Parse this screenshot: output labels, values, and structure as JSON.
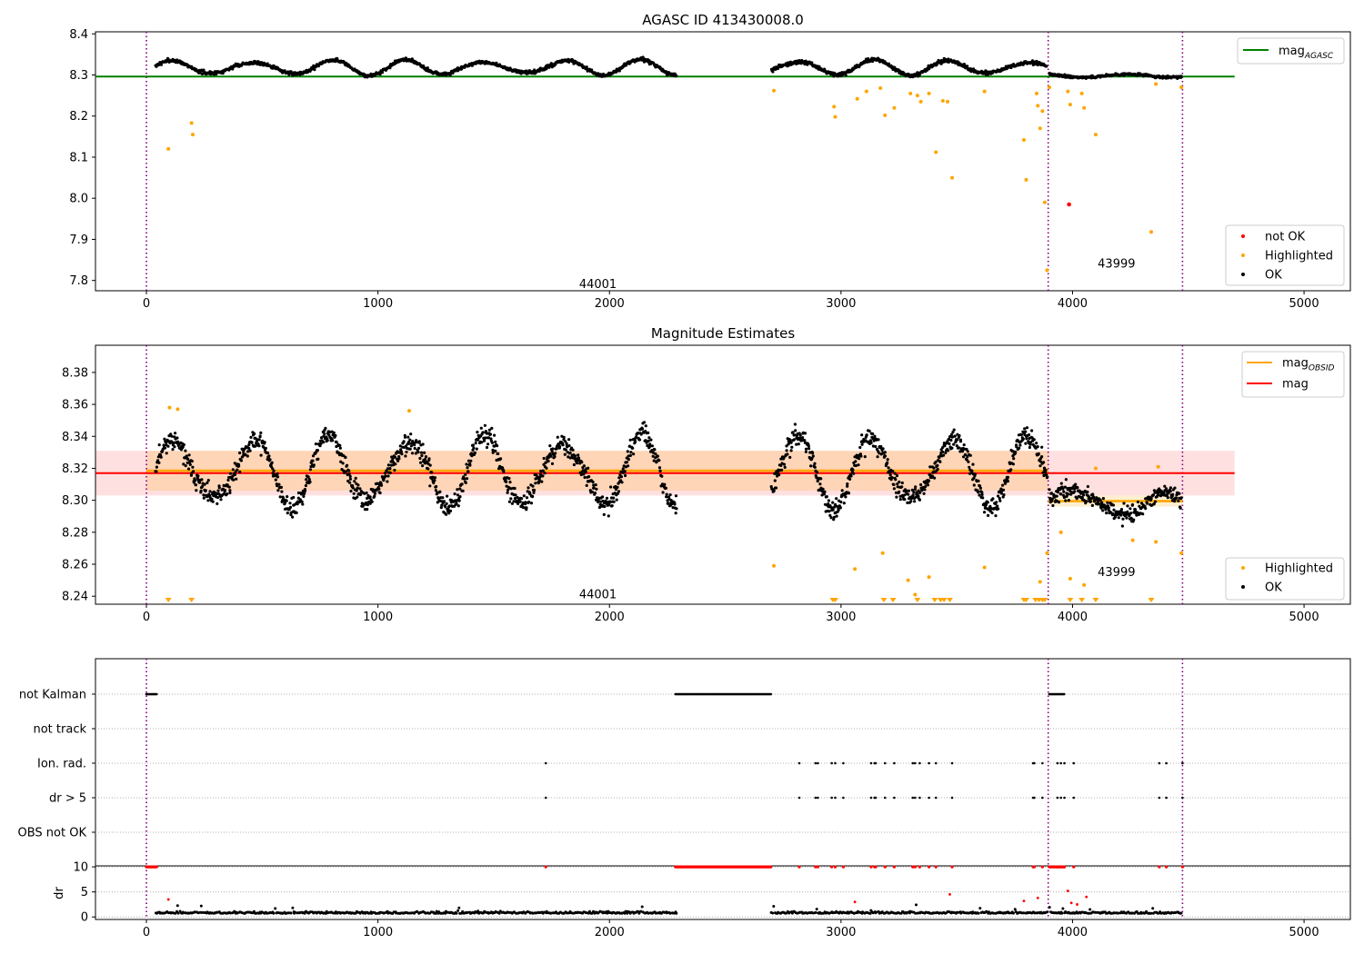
{
  "figure": {
    "title_top": "AGASC ID 413430008.0",
    "title_mid": "Magnitude Estimates"
  },
  "chart_data": [
    {
      "type": "scatter",
      "title": "AGASC ID 413430008.0",
      "xlabel": "",
      "ylabel": "",
      "xlim": [
        -220,
        5200
      ],
      "ylim": [
        7.775,
        8.405
      ],
      "xticks": [
        0,
        1000,
        2000,
        3000,
        4000,
        5000
      ],
      "yticks": [
        7.8,
        7.9,
        8.0,
        8.1,
        8.2,
        8.3,
        8.4
      ],
      "grid": false,
      "obsid_boundaries": [
        0,
        3895,
        4475
      ],
      "obsid_labels": [
        {
          "text": "44001",
          "x": 1950,
          "y": 7.79
        },
        {
          "text": "43999",
          "x": 4190,
          "y": 7.84
        }
      ],
      "reference_line": {
        "name": "mag_AGASC",
        "y": 8.296,
        "x0": -220,
        "x1": 4700,
        "color": "#008000"
      },
      "legend_lines": [
        {
          "label": "mag",
          "sub": "AGASC",
          "color": "#008000"
        }
      ],
      "legend_points": [
        {
          "label": "not OK",
          "color": "#ff0000"
        },
        {
          "label": "Highlighted",
          "color": "#ffa500"
        },
        {
          "label": "OK",
          "color": "#000000"
        }
      ],
      "legend_position": "upper-right / lower-right",
      "ok_segments": [
        {
          "x0": 40,
          "x1": 2290,
          "obs": 1
        },
        {
          "x0": 2700,
          "x1": 3890,
          "obs": 1
        },
        {
          "x0": 3900,
          "x1": 4470,
          "obs": 2
        }
      ],
      "highlighted_points": [
        [
          95,
          8.12
        ],
        [
          195,
          8.183
        ],
        [
          200,
          8.155
        ],
        [
          2710,
          8.262
        ],
        [
          2970,
          8.223
        ],
        [
          2975,
          8.198
        ],
        [
          3070,
          8.242
        ],
        [
          3110,
          8.26
        ],
        [
          3170,
          8.268
        ],
        [
          3190,
          8.202
        ],
        [
          3230,
          8.22
        ],
        [
          3300,
          8.255
        ],
        [
          3330,
          8.25
        ],
        [
          3345,
          8.235
        ],
        [
          3380,
          8.255
        ],
        [
          3410,
          8.112
        ],
        [
          3440,
          8.237
        ],
        [
          3460,
          8.235
        ],
        [
          3480,
          8.05
        ],
        [
          3620,
          8.26
        ],
        [
          3790,
          8.142
        ],
        [
          3800,
          8.045
        ],
        [
          3845,
          8.255
        ],
        [
          3850,
          8.225
        ],
        [
          3860,
          8.17
        ],
        [
          3870,
          8.212
        ],
        [
          3880,
          7.99
        ],
        [
          3890,
          7.825
        ],
        [
          3900,
          8.27
        ],
        [
          3980,
          8.26
        ],
        [
          3990,
          8.228
        ],
        [
          4040,
          8.255
        ],
        [
          4050,
          8.22
        ],
        [
          4100,
          8.155
        ],
        [
          4340,
          7.918
        ],
        [
          4360,
          8.278
        ],
        [
          4470,
          8.27
        ]
      ],
      "not_ok_points": [
        [
          3985,
          7.985
        ]
      ]
    },
    {
      "type": "scatter",
      "title": "Magnitude Estimates",
      "xlabel": "",
      "ylabel": "",
      "xlim": [
        -220,
        5200
      ],
      "ylim": [
        8.235,
        8.397
      ],
      "xticks": [
        0,
        1000,
        2000,
        3000,
        4000,
        5000
      ],
      "yticks": [
        8.24,
        8.26,
        8.28,
        8.3,
        8.32,
        8.34,
        8.36,
        8.38
      ],
      "grid": false,
      "obsid_boundaries": [
        0,
        3895,
        4475
      ],
      "obsid_labels": [
        {
          "text": "44001",
          "x": 1950,
          "y": 8.241
        },
        {
          "text": "43999",
          "x": 4190,
          "y": 8.255
        }
      ],
      "mag": {
        "name": "mag",
        "y": 8.317,
        "band": [
          8.303,
          8.331
        ],
        "x0": -220,
        "x1": 4700,
        "color": "#ff0000"
      },
      "mag_obsid": [
        {
          "x0": 0,
          "x1": 3895,
          "y": 8.3185,
          "band": [
            8.306,
            8.331
          ],
          "color": "#ffa500"
        },
        {
          "x0": 3895,
          "x1": 4475,
          "y": 8.2995,
          "band": [
            8.296,
            8.303
          ],
          "color": "#ffa500"
        }
      ],
      "legend_lines": [
        {
          "label": "mag",
          "sub": "OBSID",
          "color": "#ffa500"
        },
        {
          "label": "mag",
          "sub": "",
          "color": "#ff0000"
        }
      ],
      "legend_points": [
        {
          "label": "Highlighted",
          "color": "#ffa500"
        },
        {
          "label": "OK",
          "color": "#000000"
        }
      ],
      "legend_position": "upper-right / lower-right",
      "ok_segments": [
        {
          "x0": 40,
          "x1": 2290,
          "obs": 1
        },
        {
          "x0": 2700,
          "x1": 3890,
          "obs": 1
        },
        {
          "x0": 3900,
          "x1": 4470,
          "obs": 2
        }
      ],
      "highlighted_points": [
        [
          100,
          8.358
        ],
        [
          135,
          8.357
        ],
        [
          1135,
          8.356
        ],
        [
          2710,
          8.259
        ],
        [
          3060,
          8.257
        ],
        [
          3180,
          8.267
        ],
        [
          3290,
          8.25
        ],
        [
          3320,
          8.241
        ],
        [
          3380,
          8.252
        ],
        [
          3620,
          8.258
        ],
        [
          3860,
          8.249
        ],
        [
          3890,
          8.267
        ],
        [
          3950,
          8.28
        ],
        [
          3990,
          8.251
        ],
        [
          4050,
          8.247
        ],
        [
          4100,
          8.32
        ],
        [
          4260,
          8.275
        ],
        [
          4360,
          8.274
        ],
        [
          4370,
          8.321
        ],
        [
          4470,
          8.267
        ]
      ],
      "clipped_highlighted_x": [
        95,
        195,
        2965,
        2975,
        3185,
        3225,
        3330,
        3405,
        3430,
        3445,
        3470,
        3790,
        3800,
        3840,
        3855,
        3870,
        3880,
        3990,
        4040,
        4100,
        4340
      ]
    },
    {
      "type": "scatter",
      "title": "",
      "xlabel": "",
      "ylabel": "",
      "xlim": [
        -220,
        5200
      ],
      "xticks": [
        0,
        1000,
        2000,
        3000,
        4000,
        5000
      ],
      "categories": [
        "not Kalman",
        "not track",
        "Ion. rad.",
        "dr > 5",
        "OBS not OK"
      ],
      "grid": true,
      "obsid_boundaries": [
        0,
        3895,
        4475
      ],
      "flags": [
        {
          "category": "not Kalman",
          "ranges": [
            [
              0,
              45
            ],
            [
              2285,
              2700
            ],
            [
              3900,
              3965
            ]
          ],
          "points": []
        },
        {
          "category": "not track",
          "ranges": [],
          "points": []
        },
        {
          "category": "Ion. rad.",
          "ranges": [],
          "points": [
            1725,
            2820,
            2890,
            2900,
            2960,
            2975,
            3010,
            3130,
            3145,
            3150,
            3190,
            3230,
            3310,
            3320,
            3340,
            3380,
            3410,
            3480,
            3830,
            3835,
            3870,
            3935,
            3950,
            3965,
            4005,
            4375,
            4405,
            4475
          ]
        },
        {
          "category": "dr > 5",
          "ranges": [],
          "points": [
            1725,
            2820,
            2890,
            2900,
            2960,
            2975,
            3010,
            3130,
            3145,
            3150,
            3190,
            3230,
            3310,
            3320,
            3340,
            3380,
            3410,
            3480,
            3830,
            3835,
            3870,
            3935,
            3950,
            3965,
            4005,
            4375,
            4405,
            4475
          ]
        },
        {
          "category": "OBS not OK",
          "ranges": [],
          "points": []
        }
      ]
    },
    {
      "type": "scatter",
      "title": "",
      "xlabel": "",
      "ylabel": "dr",
      "xlim": [
        -220,
        5200
      ],
      "ylim": [
        -0.5,
        10.2
      ],
      "xticks": [
        0,
        1000,
        2000,
        3000,
        4000,
        5000
      ],
      "yticks": [
        0,
        5,
        10
      ],
      "grid": true,
      "ok_segments": [
        {
          "x0": 40,
          "x1": 2290
        },
        {
          "x0": 2700,
          "x1": 3890
        },
        {
          "x0": 3900,
          "x1": 4470
        }
      ],
      "not_ok_ranges": [
        [
          0,
          45
        ],
        [
          2285,
          2700
        ],
        [
          3900,
          3965
        ]
      ],
      "not_ok_points_at_10": [
        1725,
        2820,
        2890,
        2900,
        2960,
        2975,
        3010,
        3130,
        3145,
        3150,
        3190,
        3230,
        3310,
        3320,
        3340,
        3380,
        3410,
        3480,
        3830,
        3835,
        3870,
        3935,
        3950,
        3965,
        4005,
        4375,
        4405,
        4475
      ],
      "not_ok_points": [
        [
          95,
          3.5
        ],
        [
          3060,
          3.0
        ],
        [
          3470,
          4.5
        ],
        [
          3790,
          3.2
        ],
        [
          3850,
          3.8
        ],
        [
          3980,
          5.2
        ],
        [
          3995,
          2.8
        ],
        [
          4020,
          2.5
        ],
        [
          4060,
          4.0
        ]
      ]
    }
  ]
}
